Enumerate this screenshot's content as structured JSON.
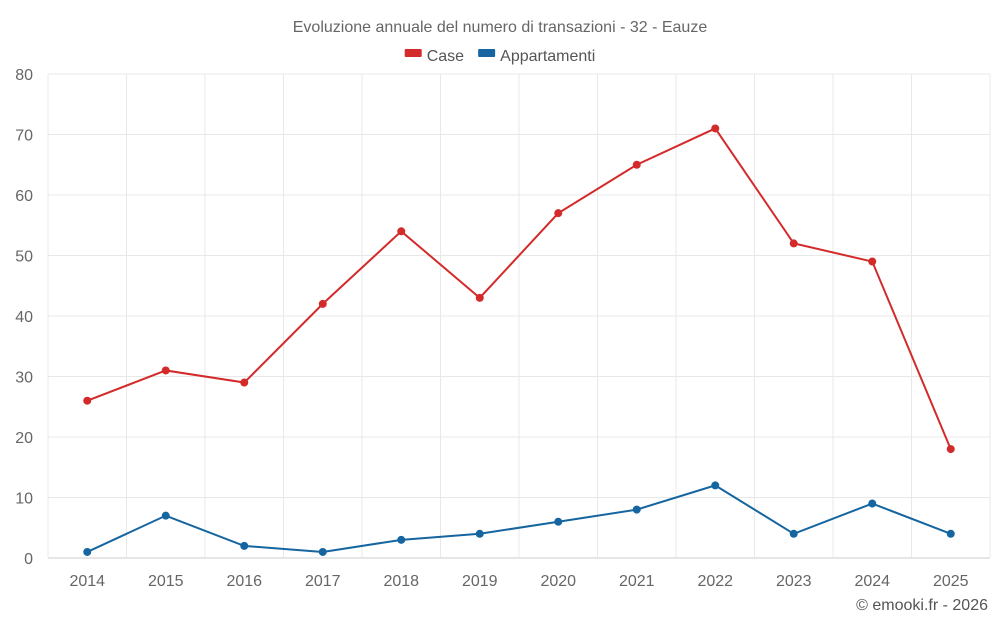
{
  "chart_data": {
    "type": "line",
    "title": "Evoluzione annuale del numero di transazioni - 32 - Eauze",
    "categories": [
      "2014",
      "2015",
      "2016",
      "2017",
      "2018",
      "2019",
      "2020",
      "2021",
      "2022",
      "2023",
      "2024",
      "2025"
    ],
    "series": [
      {
        "name": "Case",
        "color": "#d32a2a",
        "values": [
          26,
          31,
          29,
          42,
          54,
          43,
          57,
          65,
          71,
          52,
          49,
          18
        ]
      },
      {
        "name": "Appartamenti",
        "color": "#1565a0",
        "values": [
          1,
          7,
          2,
          1,
          3,
          4,
          6,
          8,
          12,
          4,
          9,
          4
        ]
      }
    ],
    "ylim": [
      0,
      80
    ],
    "yticks": [
      0,
      10,
      20,
      30,
      40,
      50,
      60,
      70,
      80
    ],
    "xlabel": "",
    "ylabel": "",
    "grid": true,
    "legend": "top-center"
  },
  "credit": "© emooki.fr - 2026"
}
